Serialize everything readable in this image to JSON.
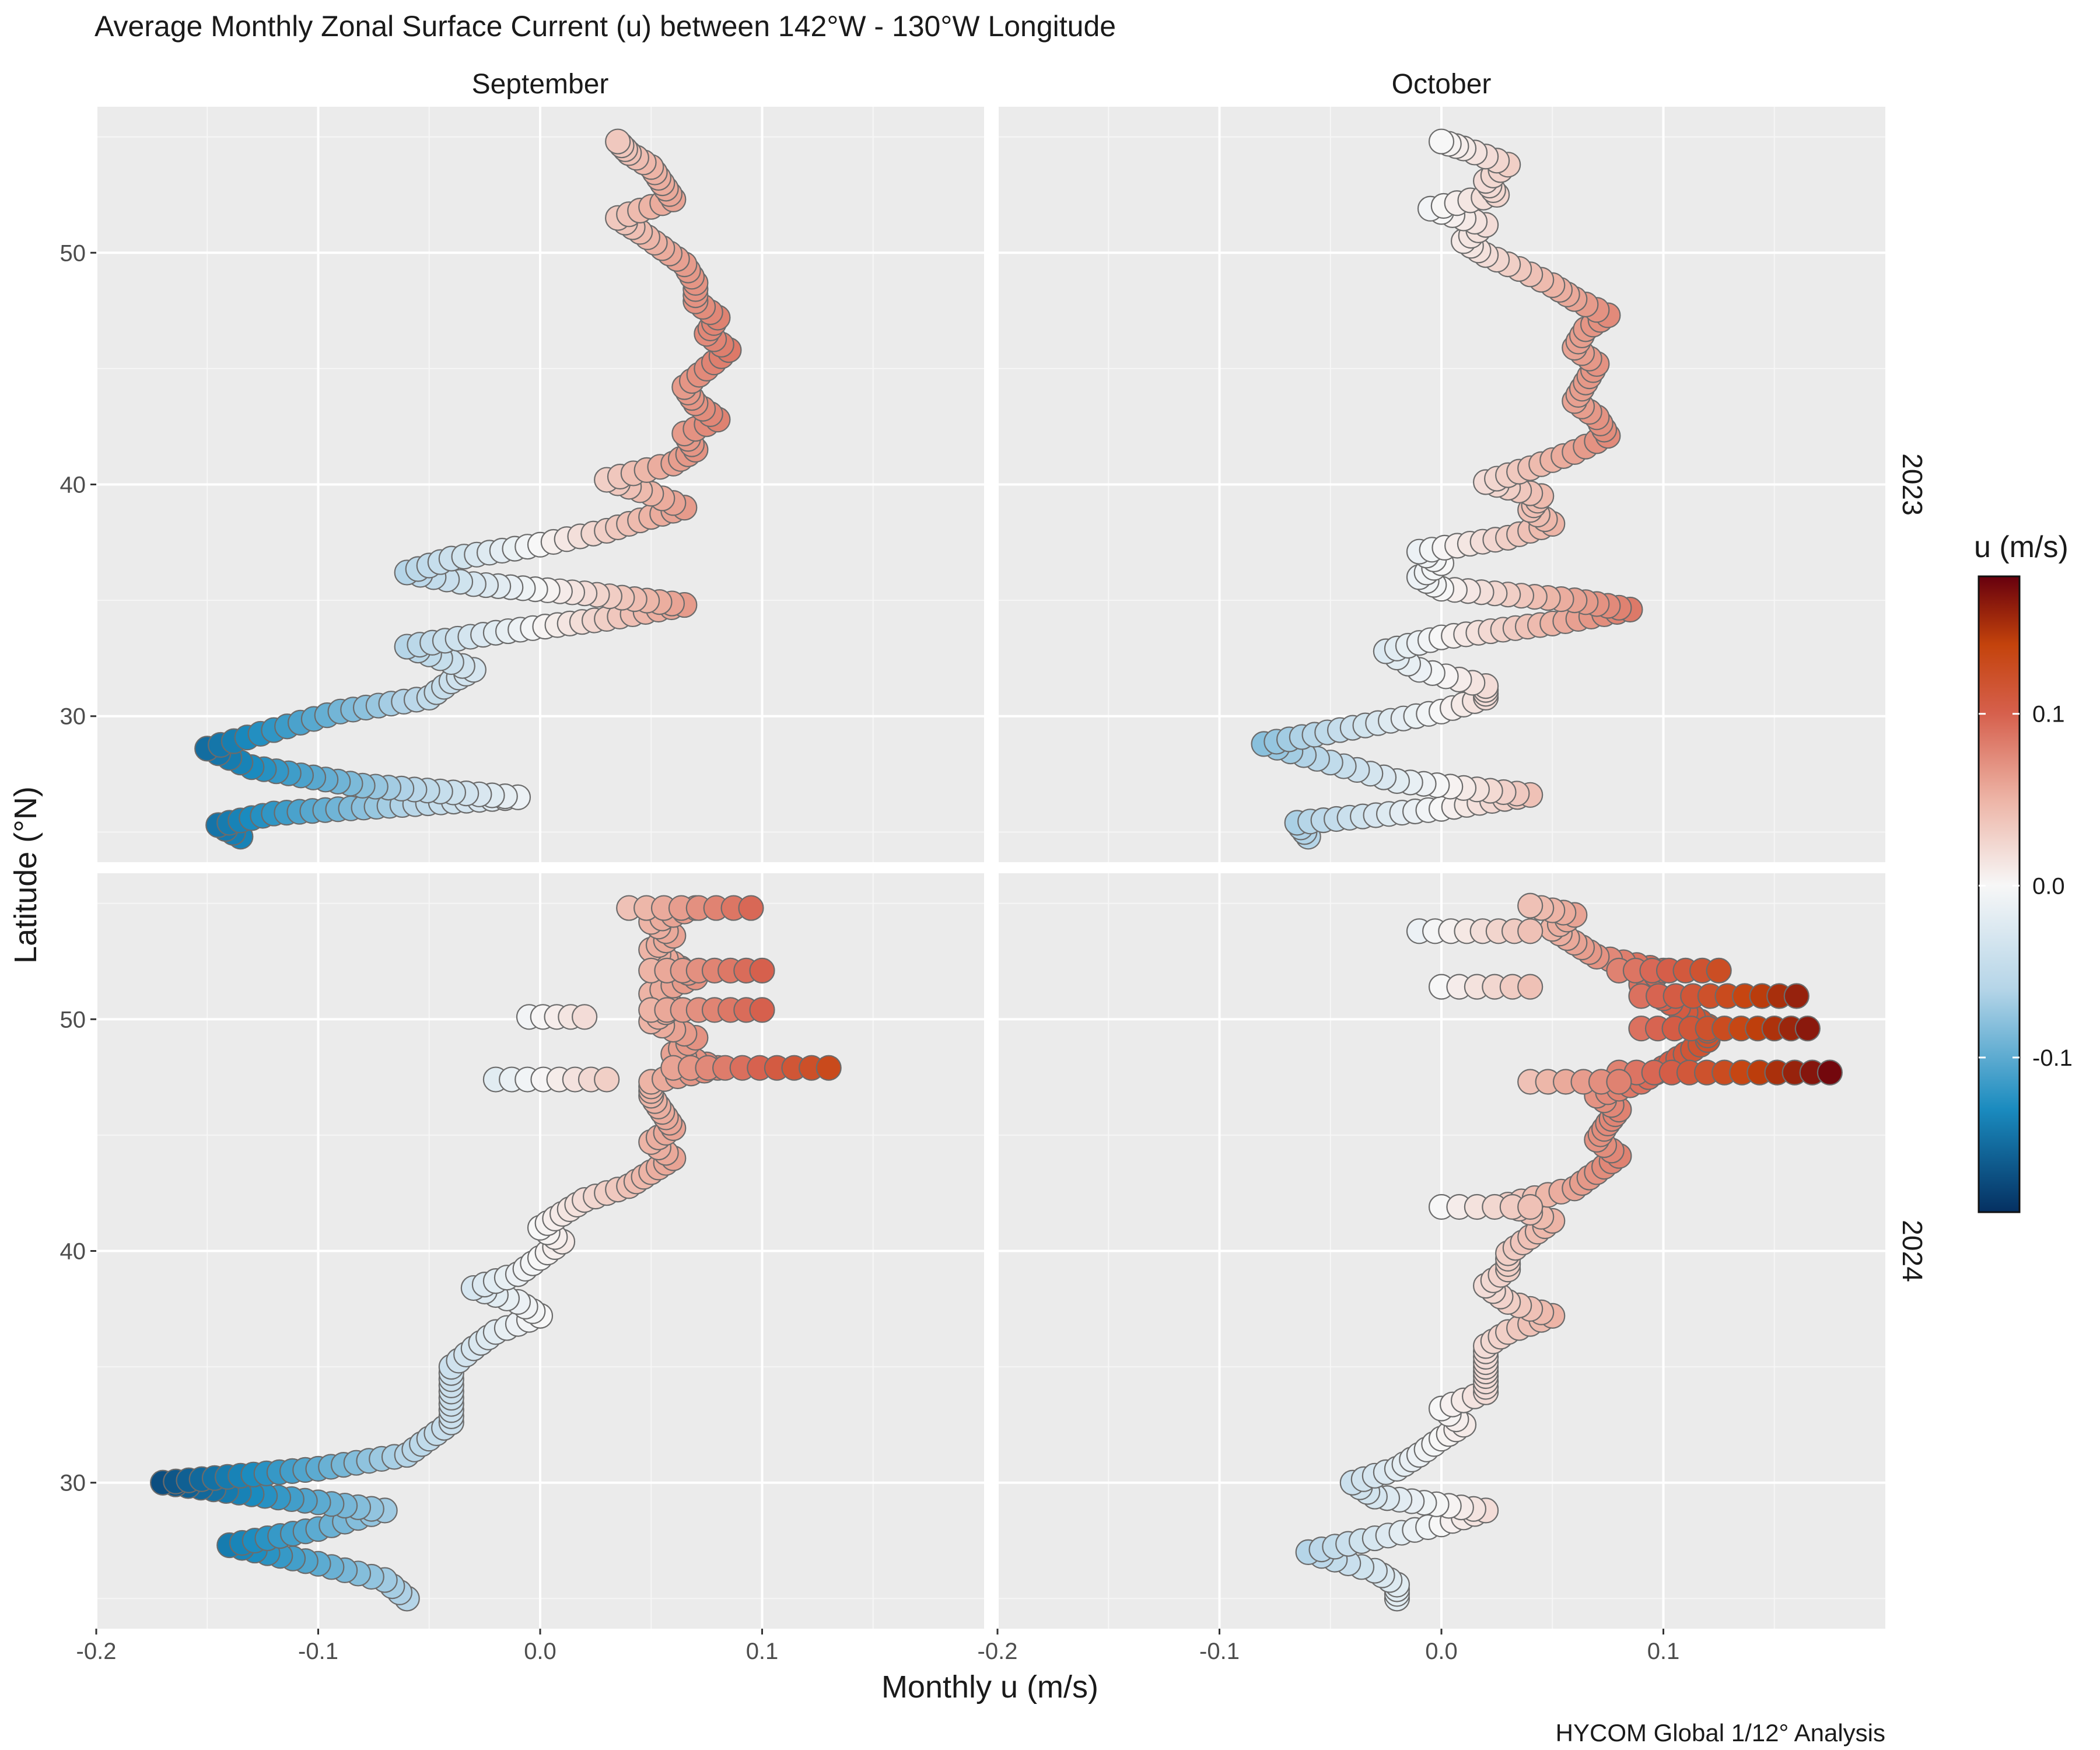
{
  "chart_data": {
    "type": "scatter",
    "title": "Average Monthly Zonal Surface Current (u) between 142°W - 130°W Longitude",
    "xlabel": "Monthly u (m/s)",
    "ylabel": "Latitude (°N)",
    "caption": "HYCOM Global 1/12° Analysis",
    "facet_cols": [
      "September",
      "October"
    ],
    "facet_rows": [
      "2023",
      "2024"
    ],
    "xlim": [
      -0.2,
      0.2
    ],
    "ylim": [
      23.7,
      56.3
    ],
    "x_ticks": [
      "-0.2",
      "-0.1",
      "0.0",
      "0.1",
      "-0.2",
      "-0.1",
      "0.0",
      "0.1"
    ],
    "x_tick_values": [
      -0.2,
      -0.1,
      0.0,
      0.1
    ],
    "y_ticks": [
      "30",
      "40",
      "50"
    ],
    "y_tick_values": [
      30,
      40,
      50
    ],
    "grid": true,
    "legend": {
      "title": "u (m/s)",
      "position": "right",
      "range": [
        -0.19,
        0.18
      ],
      "tick_labels": [
        "0.1",
        "0.0",
        "-0.1"
      ],
      "tick_values": [
        0.1,
        0.0,
        -0.1
      ],
      "colors": {
        "low": "#053061",
        "mid_low": "#1a8bbf",
        "light_low": "#b5d5e8",
        "mid": "#f7f7f7",
        "light_high": "#edb4a6",
        "mid_high": "#d6604d",
        "high_orange": "#c4430c",
        "high": "#67000d"
      }
    },
    "point_outline": "#6b6b6b",
    "panels": [
      {
        "month": "September",
        "year": "2023",
        "profile": [
          [
            24.8,
            -0.135
          ],
          [
            25.3,
            -0.145
          ],
          [
            25.8,
            -0.12
          ],
          [
            26.5,
            -0.01
          ],
          [
            27.0,
            -0.08
          ],
          [
            27.8,
            -0.13
          ],
          [
            28.6,
            -0.15
          ],
          [
            29.4,
            -0.12
          ],
          [
            30.2,
            -0.09
          ],
          [
            30.8,
            -0.05
          ],
          [
            31.5,
            -0.04
          ],
          [
            32.0,
            -0.03
          ],
          [
            32.5,
            -0.045
          ],
          [
            33.0,
            -0.06
          ],
          [
            33.6,
            -0.02
          ],
          [
            34.2,
            0.03
          ],
          [
            34.8,
            0.065
          ],
          [
            35.3,
            0.02
          ],
          [
            35.7,
            -0.03
          ],
          [
            36.2,
            -0.06
          ],
          [
            36.8,
            -0.04
          ],
          [
            37.4,
            0.0
          ],
          [
            38.0,
            0.03
          ],
          [
            38.6,
            0.05
          ],
          [
            39.0,
            0.065
          ],
          [
            39.6,
            0.05
          ],
          [
            40.2,
            0.03
          ],
          [
            40.9,
            0.06
          ],
          [
            41.5,
            0.07
          ],
          [
            42.2,
            0.065
          ],
          [
            42.8,
            0.08
          ],
          [
            43.5,
            0.07
          ],
          [
            44.2,
            0.065
          ],
          [
            45.0,
            0.075
          ],
          [
            45.8,
            0.085
          ],
          [
            46.5,
            0.075
          ],
          [
            47.2,
            0.08
          ],
          [
            47.9,
            0.07
          ],
          [
            48.7,
            0.07
          ],
          [
            49.5,
            0.065
          ],
          [
            50.2,
            0.055
          ],
          [
            50.9,
            0.045
          ],
          [
            51.5,
            0.035
          ],
          [
            52.3,
            0.06
          ],
          [
            53.0,
            0.055
          ],
          [
            53.7,
            0.05
          ],
          [
            54.3,
            0.04
          ],
          [
            54.8,
            0.035
          ]
        ]
      },
      {
        "month": "October",
        "year": "2023",
        "profile": [
          [
            24.8,
            -0.06
          ],
          [
            25.4,
            -0.065
          ],
          [
            26.0,
            0.0
          ],
          [
            26.6,
            0.04
          ],
          [
            27.2,
            -0.02
          ],
          [
            28.0,
            -0.05
          ],
          [
            28.8,
            -0.08
          ],
          [
            29.5,
            -0.04
          ],
          [
            30.2,
            0.0
          ],
          [
            30.8,
            0.02
          ],
          [
            31.3,
            0.02
          ],
          [
            32.0,
            -0.01
          ],
          [
            32.8,
            -0.025
          ],
          [
            33.4,
            0.0
          ],
          [
            34.0,
            0.05
          ],
          [
            34.6,
            0.085
          ],
          [
            35.0,
            0.06
          ],
          [
            35.5,
            0.0
          ],
          [
            36.0,
            -0.01
          ],
          [
            36.6,
            0.0
          ],
          [
            37.1,
            -0.01
          ],
          [
            37.7,
            0.03
          ],
          [
            38.3,
            0.05
          ],
          [
            38.9,
            0.04
          ],
          [
            39.5,
            0.045
          ],
          [
            40.1,
            0.02
          ],
          [
            40.7,
            0.04
          ],
          [
            41.4,
            0.06
          ],
          [
            42.1,
            0.075
          ],
          [
            42.9,
            0.07
          ],
          [
            43.6,
            0.06
          ],
          [
            44.4,
            0.065
          ],
          [
            45.2,
            0.07
          ],
          [
            45.9,
            0.06
          ],
          [
            46.7,
            0.065
          ],
          [
            47.3,
            0.075
          ],
          [
            48.0,
            0.06
          ],
          [
            48.6,
            0.05
          ],
          [
            49.3,
            0.035
          ],
          [
            49.9,
            0.02
          ],
          [
            50.5,
            0.01
          ],
          [
            51.2,
            0.02
          ],
          [
            51.9,
            -0.005
          ],
          [
            52.5,
            0.025
          ],
          [
            53.1,
            0.02
          ],
          [
            53.8,
            0.03
          ],
          [
            54.5,
            0.01
          ],
          [
            54.8,
            0.0
          ]
        ]
      },
      {
        "month": "September",
        "year": "2024",
        "profile": [
          [
            25.0,
            -0.06
          ],
          [
            25.8,
            -0.07
          ],
          [
            26.5,
            -0.1
          ],
          [
            27.3,
            -0.14
          ],
          [
            28.0,
            -0.1
          ],
          [
            28.8,
            -0.07
          ],
          [
            29.5,
            -0.13
          ],
          [
            30.0,
            -0.17
          ],
          [
            30.6,
            -0.1
          ],
          [
            31.2,
            -0.06
          ],
          [
            31.9,
            -0.05
          ],
          [
            32.6,
            -0.04
          ],
          [
            33.4,
            -0.04
          ],
          [
            34.2,
            -0.04
          ],
          [
            35.0,
            -0.04
          ],
          [
            35.8,
            -0.03
          ],
          [
            36.5,
            -0.02
          ],
          [
            37.2,
            0.0
          ],
          [
            37.8,
            -0.01
          ],
          [
            38.4,
            -0.03
          ],
          [
            39.0,
            -0.01
          ],
          [
            39.7,
            0.0
          ],
          [
            40.4,
            0.01
          ],
          [
            41.0,
            0.0
          ],
          [
            41.6,
            0.01
          ],
          [
            42.2,
            0.02
          ],
          [
            42.8,
            0.04
          ],
          [
            43.4,
            0.05
          ],
          [
            44.0,
            0.06
          ],
          [
            44.7,
            0.05
          ],
          [
            45.3,
            0.06
          ],
          [
            46.0,
            0.055
          ],
          [
            46.7,
            0.05
          ],
          [
            47.3,
            0.05
          ],
          [
            47.9,
            0.08
          ],
          [
            48.5,
            0.06
          ],
          [
            49.2,
            0.07
          ],
          [
            49.9,
            0.05
          ],
          [
            50.5,
            0.06
          ],
          [
            51.1,
            0.05
          ],
          [
            51.8,
            0.07
          ],
          [
            52.4,
            0.06
          ],
          [
            53.0,
            0.05
          ],
          [
            53.6,
            0.06
          ],
          [
            54.2,
            0.05
          ],
          [
            54.8,
            0.07
          ]
        ]
      },
      {
        "month": "October",
        "year": "2024",
        "profile": [
          [
            25.0,
            -0.02
          ],
          [
            25.6,
            -0.02
          ],
          [
            26.2,
            -0.03
          ],
          [
            27.0,
            -0.06
          ],
          [
            27.6,
            -0.03
          ],
          [
            28.2,
            0.0
          ],
          [
            28.8,
            0.02
          ],
          [
            29.4,
            -0.03
          ],
          [
            30.0,
            -0.04
          ],
          [
            30.6,
            -0.02
          ],
          [
            31.2,
            -0.01
          ],
          [
            31.9,
            0.0
          ],
          [
            32.5,
            0.01
          ],
          [
            33.2,
            0.0
          ],
          [
            33.9,
            0.02
          ],
          [
            34.6,
            0.02
          ],
          [
            35.2,
            0.02
          ],
          [
            35.9,
            0.02
          ],
          [
            36.5,
            0.03
          ],
          [
            37.2,
            0.05
          ],
          [
            37.8,
            0.03
          ],
          [
            38.5,
            0.02
          ],
          [
            39.2,
            0.03
          ],
          [
            39.9,
            0.03
          ],
          [
            40.6,
            0.04
          ],
          [
            41.3,
            0.05
          ],
          [
            42.0,
            0.03
          ],
          [
            42.7,
            0.06
          ],
          [
            43.4,
            0.07
          ],
          [
            44.1,
            0.08
          ],
          [
            44.8,
            0.07
          ],
          [
            45.5,
            0.075
          ],
          [
            46.1,
            0.08
          ],
          [
            46.7,
            0.07
          ],
          [
            47.3,
            0.09
          ],
          [
            47.9,
            0.1
          ],
          [
            48.5,
            0.11
          ],
          [
            49.1,
            0.12
          ],
          [
            49.7,
            0.12
          ],
          [
            50.3,
            0.11
          ],
          [
            50.9,
            0.1
          ],
          [
            51.5,
            0.09
          ],
          [
            52.1,
            0.1
          ],
          [
            52.7,
            0.07
          ],
          [
            53.3,
            0.06
          ],
          [
            53.9,
            0.05
          ],
          [
            54.5,
            0.06
          ],
          [
            54.9,
            0.04
          ]
        ]
      }
    ],
    "spurs": [
      {
        "panel": 2,
        "lat": 47.9,
        "u_from": 0.06,
        "u_to": 0.13
      },
      {
        "panel": 2,
        "lat": 52.1,
        "u_from": 0.05,
        "u_to": 0.1
      },
      {
        "panel": 2,
        "lat": 50.4,
        "u_from": 0.05,
        "u_to": 0.1
      },
      {
        "panel": 2,
        "lat": 54.8,
        "u_from": 0.04,
        "u_to": 0.095
      },
      {
        "panel": 2,
        "lat": 47.4,
        "u_from": -0.02,
        "u_to": 0.03
      },
      {
        "panel": 2,
        "lat": 50.1,
        "u_from": -0.005,
        "u_to": 0.02
      },
      {
        "panel": 3,
        "lat": 47.7,
        "u_from": 0.08,
        "u_to": 0.175
      },
      {
        "panel": 3,
        "lat": 49.6,
        "u_from": 0.09,
        "u_to": 0.165
      },
      {
        "panel": 3,
        "lat": 51.0,
        "u_from": 0.09,
        "u_to": 0.16
      },
      {
        "panel": 3,
        "lat": 52.1,
        "u_from": 0.08,
        "u_to": 0.125
      },
      {
        "panel": 3,
        "lat": 51.4,
        "u_from": 0.0,
        "u_to": 0.04
      },
      {
        "panel": 3,
        "lat": 53.8,
        "u_from": -0.01,
        "u_to": 0.04
      },
      {
        "panel": 3,
        "lat": 47.3,
        "u_from": 0.04,
        "u_to": 0.08
      },
      {
        "panel": 3,
        "lat": 41.9,
        "u_from": 0.0,
        "u_to": 0.04
      }
    ]
  }
}
